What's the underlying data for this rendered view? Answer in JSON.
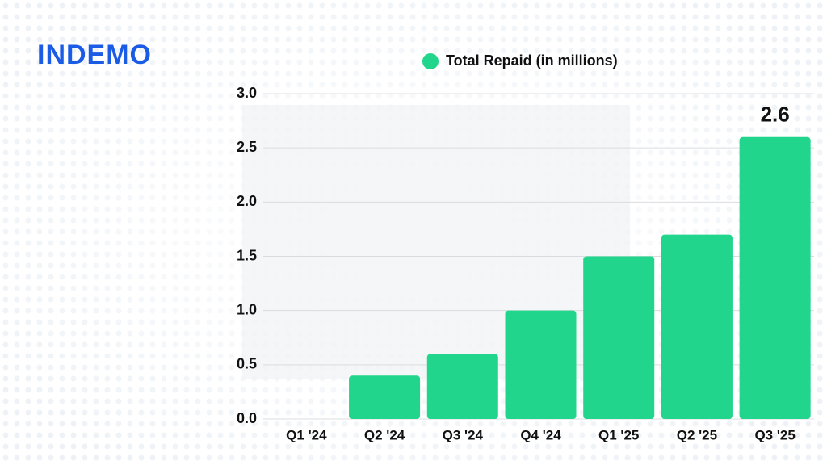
{
  "brand": "INDEMO",
  "chart_data": {
    "type": "bar",
    "categories": [
      "Q1 '24",
      "Q2 '24",
      "Q3 '24",
      "Q4 '24",
      "Q1 '25",
      "Q2 '25",
      "Q3 '25"
    ],
    "series": [
      {
        "name": "Total Repaid (in millions)",
        "color": "#21d68c",
        "values": [
          0,
          0.4,
          0.6,
          1.0,
          1.5,
          1.7,
          2.6
        ]
      }
    ],
    "ylim": [
      0,
      3
    ],
    "yticks": [
      {
        "value": 0,
        "label": "0.0"
      },
      0.5,
      {
        "value": 1,
        "label": "1.0"
      },
      1.5,
      {
        "value": 2,
        "label": "2.0"
      },
      2.5,
      {
        "value": 3,
        "label": "3.0"
      }
    ],
    "grid": true,
    "legend": "top"
  }
}
